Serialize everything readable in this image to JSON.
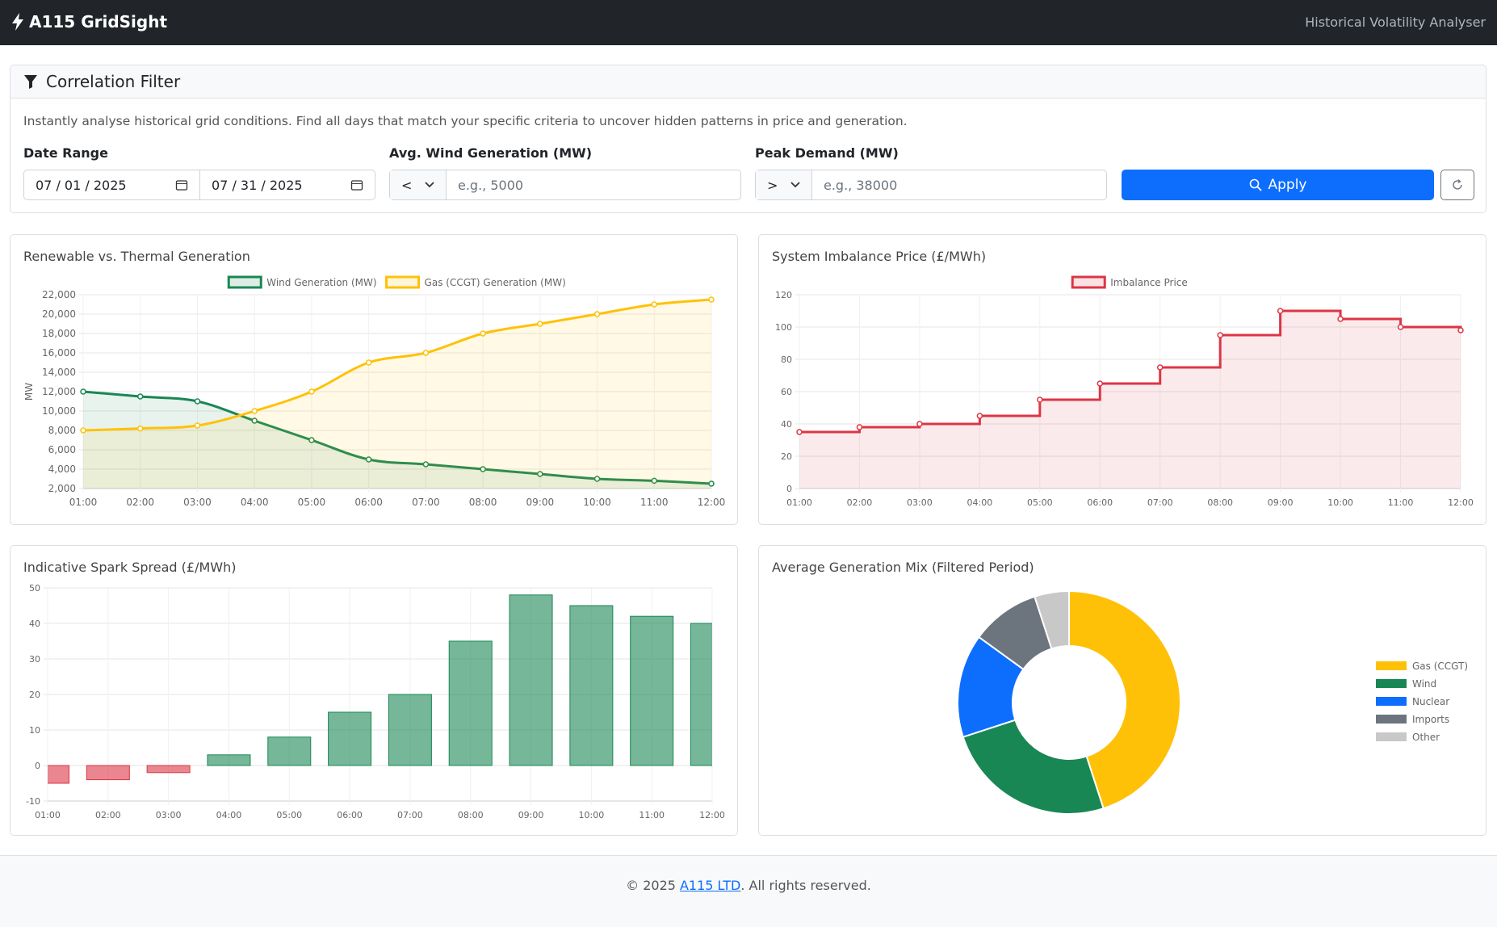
{
  "header": {
    "brand": "A115 GridSight",
    "subtitle": "Historical Volatility Analyser"
  },
  "filter": {
    "title": "Correlation Filter",
    "description": "Instantly analyse historical grid conditions. Find all days that match your specific criteria to uncover hidden patterns in price and generation.",
    "date_range": {
      "label": "Date Range",
      "start": "07 / 01 / 2025",
      "end": "07 / 31 / 2025"
    },
    "wind": {
      "label": "Avg. Wind Generation (MW)",
      "operator": "<",
      "placeholder": "e.g., 5000"
    },
    "demand": {
      "label": "Peak Demand (MW)",
      "operator": ">",
      "placeholder": "e.g., 38000"
    },
    "apply": "Apply"
  },
  "chart_data": [
    {
      "type": "line",
      "title": "Renewable vs. Thermal Generation",
      "y_label": "MW",
      "smooth": true,
      "fill": true,
      "categories": [
        "01:00",
        "02:00",
        "03:00",
        "04:00",
        "05:00",
        "06:00",
        "07:00",
        "08:00",
        "09:00",
        "10:00",
        "11:00",
        "12:00"
      ],
      "series": [
        {
          "name": "Wind Generation (MW)",
          "color": "#198754",
          "values": [
            12000,
            11500,
            11000,
            9000,
            7000,
            5000,
            4500,
            4000,
            3500,
            3000,
            2800,
            2500
          ]
        },
        {
          "name": "Gas (CCGT) Generation (MW)",
          "color": "#ffc107",
          "values": [
            8000,
            8200,
            8500,
            10000,
            12000,
            15000,
            16000,
            18000,
            19000,
            20000,
            21000,
            21500
          ]
        }
      ],
      "ylim": [
        2000,
        22000
      ],
      "yticks": [
        {
          "value": 2000,
          "label": "2,000"
        },
        {
          "value": 4000,
          "label": "4,000"
        },
        {
          "value": 6000,
          "label": "6,000"
        },
        {
          "value": 8000,
          "label": "8,000"
        },
        {
          "value": 10000,
          "label": "10,000"
        },
        {
          "value": 12000,
          "label": "12,000"
        },
        {
          "value": 14000,
          "label": "14,000"
        },
        {
          "value": 16000,
          "label": "16,000"
        },
        {
          "value": 18000,
          "label": "18,000"
        },
        {
          "value": 20000,
          "label": "20,000"
        },
        {
          "value": 22000,
          "label": "22,000"
        }
      ],
      "grid": true,
      "legend": "top"
    },
    {
      "type": "line",
      "title": "System Imbalance Price (£/MWh)",
      "stepped": true,
      "fill": true,
      "categories": [
        "01:00",
        "02:00",
        "03:00",
        "04:00",
        "05:00",
        "06:00",
        "07:00",
        "08:00",
        "09:00",
        "10:00",
        "11:00",
        "12:00"
      ],
      "series": [
        {
          "name": "Imbalance Price",
          "color": "#dc3545",
          "values": [
            35,
            38,
            40,
            45,
            55,
            65,
            75,
            95,
            110,
            105,
            100,
            98
          ]
        }
      ],
      "ylim": [
        0,
        120
      ],
      "yticks": [
        0,
        20,
        40,
        60,
        80,
        100,
        120
      ],
      "grid": true,
      "legend": "top"
    },
    {
      "type": "bar",
      "title": "Indicative Spark Spread (£/MWh)",
      "categories": [
        "01:00",
        "02:00",
        "03:00",
        "04:00",
        "05:00",
        "06:00",
        "07:00",
        "08:00",
        "09:00",
        "10:00",
        "11:00",
        "12:00"
      ],
      "values": [
        -5,
        -4,
        -2,
        3,
        8,
        15,
        20,
        35,
        48,
        45,
        42,
        40
      ],
      "positive_color": "#198754",
      "negative_color": "#dc3545",
      "ylim": [
        -10,
        50
      ],
      "yticks": [
        -10,
        0,
        10,
        20,
        30,
        40,
        50
      ],
      "grid": true
    },
    {
      "type": "doughnut",
      "title": "Average Generation Mix (Filtered Period)",
      "categories": [
        "Gas (CCGT)",
        "Wind",
        "Nuclear",
        "Imports",
        "Other"
      ],
      "values": [
        45,
        25,
        15,
        10,
        5
      ],
      "colors": [
        "#ffc107",
        "#198754",
        "#0d6efd",
        "#6c757d",
        "#c8c8c8"
      ],
      "legend": "right"
    }
  ],
  "footer": {
    "prefix": "© 2025",
    "link": "A115 LTD",
    "suffix": ". All rights reserved."
  }
}
